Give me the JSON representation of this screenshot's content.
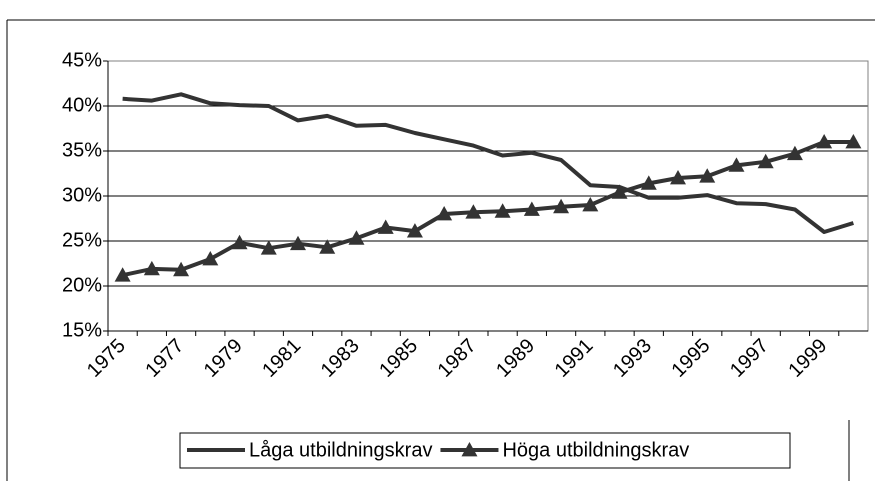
{
  "chart_data": {
    "type": "line",
    "categories": [
      "1975",
      null,
      "1977",
      null,
      "1979",
      null,
      "1981",
      null,
      "1983",
      null,
      "1985",
      null,
      "1987",
      null,
      "1989",
      null,
      "1991",
      null,
      "1993",
      null,
      "1995",
      null,
      "1997",
      null,
      "1999",
      null
    ],
    "series": [
      {
        "name": "Låga utbildningskrav",
        "color": "#333333",
        "marker": "none",
        "values": [
          40.8,
          40.6,
          41.3,
          40.3,
          40.1,
          40.0,
          38.4,
          38.9,
          37.8,
          37.9,
          37.0,
          36.3,
          35.6,
          34.5,
          34.8,
          34.0,
          31.2,
          31.0,
          29.8,
          29.8,
          30.1,
          29.2,
          29.1,
          28.5,
          26.0,
          27.0
        ]
      },
      {
        "name": "Höga utbildningskrav",
        "color": "#333333",
        "marker": "triangle",
        "values": [
          21.2,
          21.9,
          21.8,
          23.0,
          24.8,
          24.2,
          24.7,
          24.3,
          25.3,
          26.5,
          26.1,
          28.0,
          28.2,
          28.3,
          28.5,
          28.8,
          29.0,
          30.4,
          31.4,
          32.0,
          32.2,
          33.4,
          33.8,
          34.7,
          36.0,
          36.0
        ]
      }
    ],
    "ylim": [
      15,
      45
    ],
    "yticks": [
      {
        "value": 15,
        "label": "15%"
      },
      {
        "value": 20,
        "label": "20%"
      },
      {
        "value": 25,
        "label": "25%"
      },
      {
        "value": 30,
        "label": "30%"
      },
      {
        "value": 35,
        "label": "35%"
      },
      {
        "value": 40,
        "label": "40%"
      },
      {
        "value": 45,
        "label": "45%"
      }
    ],
    "grid": true,
    "legend": "bottom"
  }
}
